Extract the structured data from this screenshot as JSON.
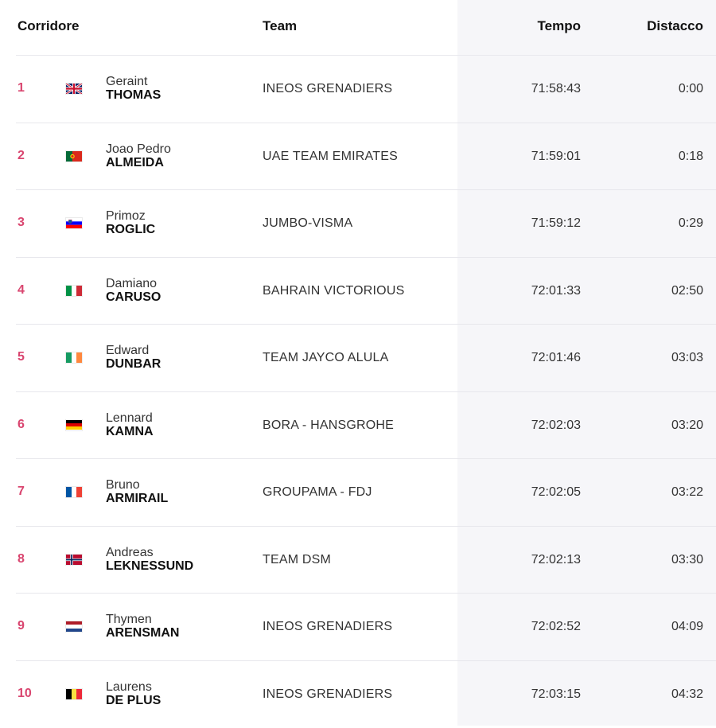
{
  "header": {
    "rider": "Corridore",
    "team": "Team",
    "time": "Tempo",
    "gap": "Distacco"
  },
  "rows": [
    {
      "rank": "1",
      "flag": "gb-flag-icon",
      "first": "Geraint",
      "last": "THOMAS",
      "team": "INEOS GRENADIERS",
      "time": "71:58:43",
      "gap": "0:00"
    },
    {
      "rank": "2",
      "flag": "pt-flag-icon",
      "first": "Joao Pedro",
      "last": "ALMEIDA",
      "team": "UAE TEAM EMIRATES",
      "time": "71:59:01",
      "gap": "0:18"
    },
    {
      "rank": "3",
      "flag": "si-flag-icon",
      "first": "Primoz",
      "last": "ROGLIC",
      "team": "JUMBO-VISMA",
      "time": "71:59:12",
      "gap": "0:29"
    },
    {
      "rank": "4",
      "flag": "it-flag-icon",
      "first": "Damiano",
      "last": "CARUSO",
      "team": "BAHRAIN VICTORIOUS",
      "time": "72:01:33",
      "gap": "02:50"
    },
    {
      "rank": "5",
      "flag": "ie-flag-icon",
      "first": "Edward",
      "last": "DUNBAR",
      "team": "TEAM JAYCO ALULA",
      "time": "72:01:46",
      "gap": "03:03"
    },
    {
      "rank": "6",
      "flag": "de-flag-icon",
      "first": "Lennard",
      "last": "KAMNA",
      "team": "BORA - HANSGROHE",
      "time": "72:02:03",
      "gap": "03:20"
    },
    {
      "rank": "7",
      "flag": "fr-flag-icon",
      "first": "Bruno",
      "last": "ARMIRAIL",
      "team": "GROUPAMA - FDJ",
      "time": "72:02:05",
      "gap": "03:22"
    },
    {
      "rank": "8",
      "flag": "no-flag-icon",
      "first": "Andreas",
      "last": "LEKNESSUND",
      "team": "TEAM DSM",
      "time": "72:02:13",
      "gap": "03:30"
    },
    {
      "rank": "9",
      "flag": "nl-flag-icon",
      "first": "Thymen",
      "last": "ARENSMAN",
      "team": "INEOS GRENADIERS",
      "time": "72:02:52",
      "gap": "04:09"
    },
    {
      "rank": "10",
      "flag": "be-flag-icon",
      "first": "Laurens",
      "last": "DE PLUS",
      "team": "INEOS GRENADIERS",
      "time": "72:03:15",
      "gap": "04:32"
    }
  ],
  "colors": {
    "rank_accent": "#d9456f",
    "shaded_columns_bg": "#f6f6f9"
  }
}
